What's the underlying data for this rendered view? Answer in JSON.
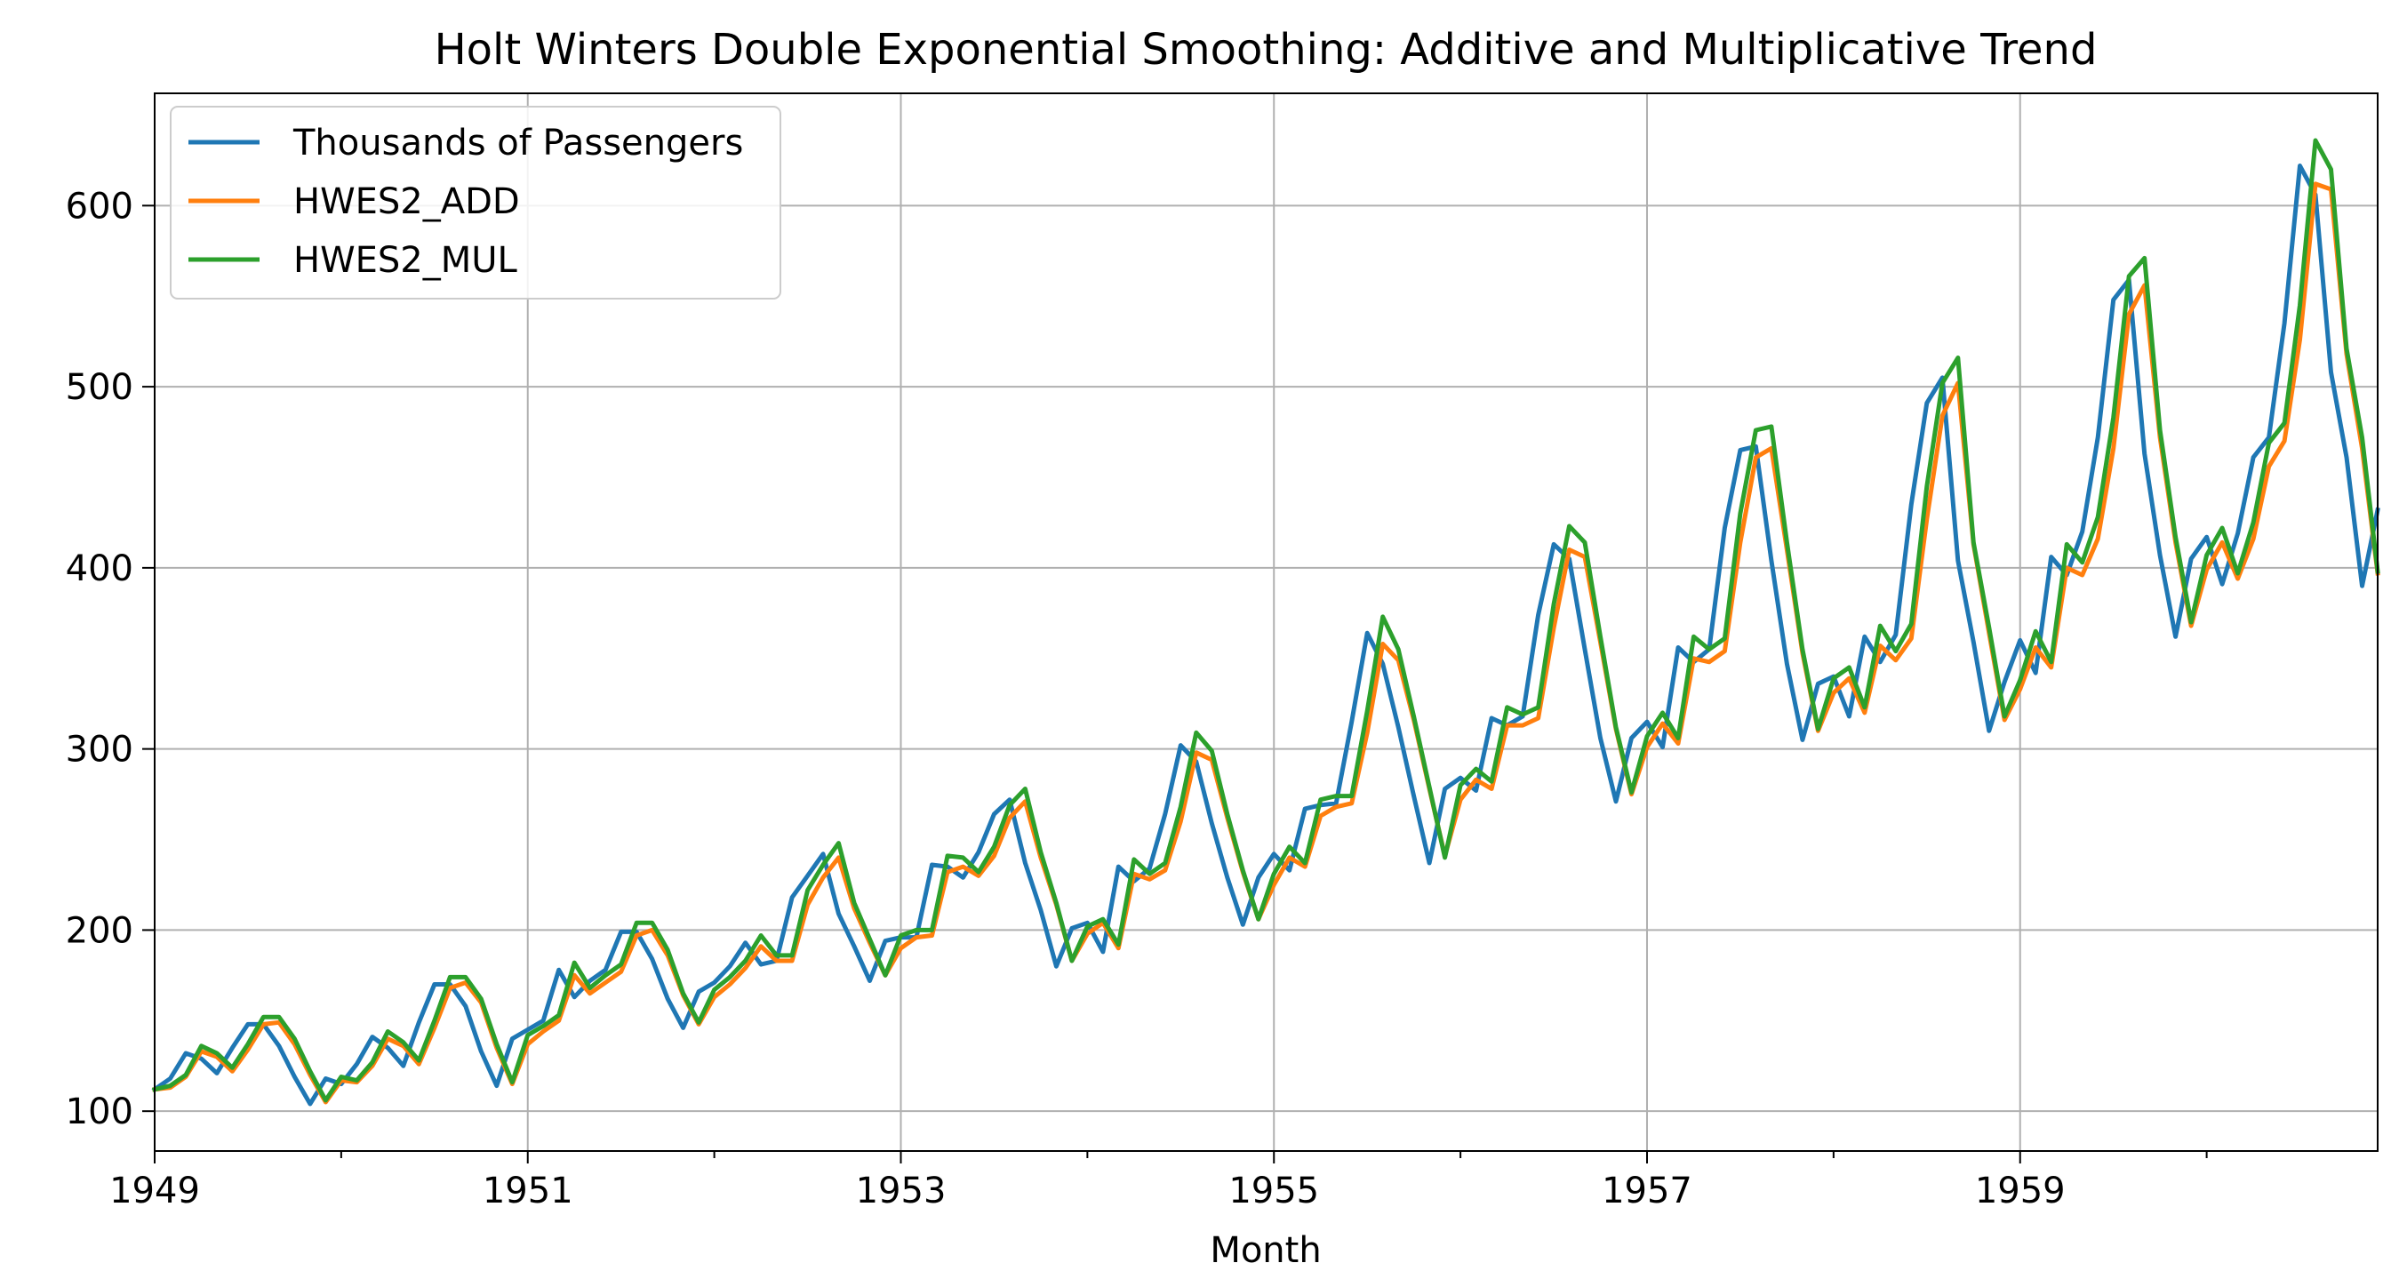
{
  "chart_data": {
    "type": "line",
    "title": "Holt Winters Double Exponential Smoothing: Additive and Multiplicative Trend",
    "xlabel": "Month",
    "ylabel": "",
    "x_start": "1949-01",
    "x_end": "1960-12",
    "xlim": [
      1949.0,
      1960.9167
    ],
    "ylim": [
      78,
      662
    ],
    "x_ticks": [
      1949,
      1951,
      1953,
      1955,
      1957,
      1959
    ],
    "x_tick_labels": [
      "1949",
      "1951",
      "1953",
      "1955",
      "1957",
      "1959"
    ],
    "y_ticks": [
      100,
      200,
      300,
      400,
      500,
      600
    ],
    "y_tick_labels": [
      "100",
      "200",
      "300",
      "400",
      "500",
      "600"
    ],
    "grid": true,
    "legend_position": "top-left",
    "series": [
      {
        "name": "Thousands of Passengers",
        "color": "#1f77b4",
        "values": [
          112,
          118,
          132,
          129,
          121,
          135,
          148,
          148,
          136,
          119,
          104,
          118,
          115,
          126,
          141,
          135,
          125,
          149,
          170,
          170,
          158,
          133,
          114,
          140,
          145,
          150,
          178,
          163,
          172,
          178,
          199,
          199,
          184,
          162,
          146,
          166,
          171,
          180,
          193,
          181,
          183,
          218,
          230,
          242,
          209,
          191,
          172,
          194,
          196,
          196,
          236,
          235,
          229,
          243,
          264,
          272,
          237,
          211,
          180,
          201,
          204,
          188,
          235,
          227,
          234,
          264,
          302,
          293,
          259,
          229,
          203,
          229,
          242,
          233,
          267,
          269,
          270,
          315,
          364,
          347,
          312,
          274,
          237,
          278,
          284,
          277,
          317,
          313,
          318,
          374,
          413,
          405,
          355,
          306,
          271,
          306,
          315,
          301,
          356,
          348,
          355,
          422,
          465,
          467,
          404,
          347,
          305,
          336,
          340,
          318,
          362,
          348,
          363,
          435,
          491,
          505,
          404,
          359,
          310,
          337,
          360,
          342,
          406,
          396,
          420,
          472,
          548,
          559,
          463,
          407,
          362,
          405,
          417,
          391,
          419,
          461,
          472,
          535,
          622,
          606,
          508,
          461,
          390,
          432
        ]
      },
      {
        "name": "HWES2_ADD",
        "color": "#ff7f0e",
        "values": [
          112,
          113,
          119,
          133,
          130,
          122,
          134,
          148,
          149,
          137,
          120,
          105,
          117,
          116,
          125,
          140,
          136,
          126,
          146,
          168,
          171,
          160,
          135,
          115,
          137,
          144,
          150,
          175,
          165,
          171,
          177,
          197,
          200,
          186,
          164,
          148,
          163,
          170,
          179,
          191,
          183,
          183,
          214,
          229,
          240,
          212,
          193,
          175,
          190,
          196,
          197,
          232,
          235,
          230,
          241,
          262,
          271,
          240,
          214,
          183,
          198,
          204,
          190,
          231,
          228,
          233,
          260,
          298,
          294,
          262,
          232,
          206,
          225,
          240,
          235,
          263,
          268,
          270,
          309,
          358,
          349,
          316,
          278,
          241,
          272,
          283,
          278,
          313,
          313,
          317,
          367,
          410,
          406,
          359,
          311,
          275,
          301,
          314,
          303,
          350,
          348,
          354,
          414,
          461,
          466,
          410,
          353,
          310,
          331,
          339,
          320,
          357,
          349,
          361,
          427,
          484,
          502,
          413,
          364,
          316,
          333,
          356,
          345,
          400,
          396,
          416,
          466,
          540,
          556,
          472,
          414,
          368,
          399,
          414,
          394,
          416,
          456,
          470,
          526,
          612,
          609,
          518,
          466,
          397
        ]
      },
      {
        "name": "HWES2_MUL",
        "color": "#2ca02c",
        "values": [
          112,
          114,
          120,
          136,
          132,
          124,
          137,
          152,
          152,
          140,
          122,
          106,
          119,
          117,
          127,
          144,
          138,
          128,
          150,
          174,
          174,
          162,
          137,
          116,
          142,
          147,
          153,
          182,
          168,
          175,
          181,
          204,
          204,
          189,
          165,
          149,
          167,
          174,
          183,
          197,
          186,
          186,
          222,
          236,
          248,
          215,
          195,
          175,
          197,
          200,
          200,
          241,
          240,
          232,
          246,
          269,
          278,
          243,
          215,
          183,
          202,
          206,
          192,
          239,
          231,
          237,
          268,
          309,
          299,
          264,
          233,
          206,
          231,
          246,
          237,
          272,
          274,
          274,
          321,
          373,
          355,
          318,
          279,
          240,
          280,
          289,
          282,
          323,
          319,
          323,
          380,
          423,
          414,
          362,
          312,
          276,
          307,
          320,
          306,
          362,
          355,
          361,
          430,
          476,
          478,
          414,
          355,
          311,
          339,
          345,
          323,
          368,
          354,
          369,
          445,
          502,
          516,
          414,
          367,
          318,
          338,
          365,
          348,
          413,
          403,
          428,
          483,
          561,
          571,
          476,
          417,
          370,
          407,
          422,
          397,
          425,
          469,
          480,
          545,
          636,
          620,
          521,
          472,
          398
        ]
      }
    ]
  }
}
